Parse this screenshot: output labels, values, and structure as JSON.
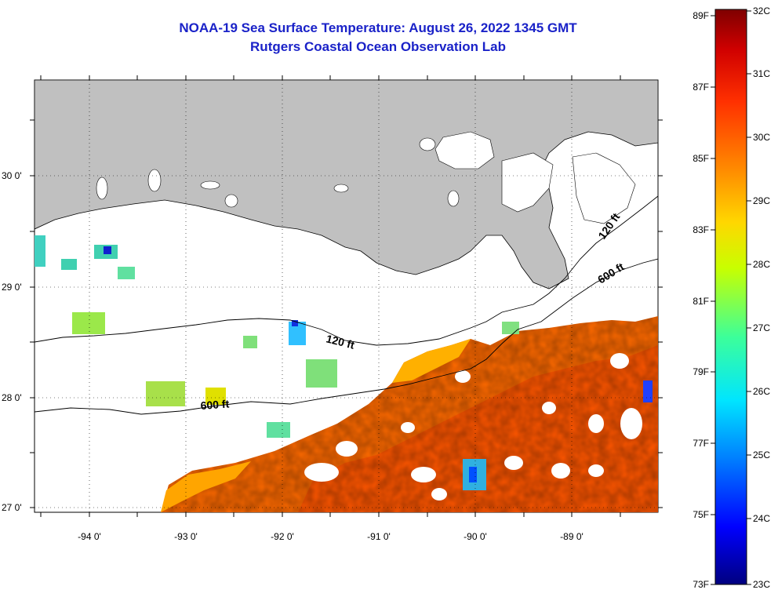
{
  "title": {
    "line1": "NOAA-19 Sea Surface Temperature:  August 26, 2022 1345 GMT",
    "line2": "Rutgers Coastal Ocean Observation Lab"
  },
  "colors": {
    "title": "#1a22c8",
    "land": "#c0c0c0",
    "cloud_mask": "#ffffff"
  },
  "map": {
    "lon_labels": [
      "-94 0'",
      "-93 0'",
      "-92 0'",
      "-91 0'",
      "-90 0'",
      "-89 0'"
    ],
    "lat_labels": [
      "30 0'",
      "29 0'",
      "28 0'",
      "27 0'"
    ],
    "contours": [
      {
        "label": "120 ft"
      },
      {
        "label": "600 ft"
      },
      {
        "label": "120 ft"
      },
      {
        "label": "600 ft"
      }
    ]
  },
  "colorbar": {
    "fahrenheit": [
      "89F",
      "87F",
      "85F",
      "83F",
      "81F",
      "79F",
      "77F",
      "75F",
      "73F"
    ],
    "celsius": [
      "32C",
      "31C",
      "30C",
      "29C",
      "28C",
      "27C",
      "26C",
      "25C",
      "24C",
      "23C"
    ],
    "scale": [
      "#00007f",
      "#0000ff",
      "#0080ff",
      "#00e5ff",
      "#3cff9a",
      "#c8ff00",
      "#ffd700",
      "#ff8c00",
      "#ff3000",
      "#d00000",
      "#7f0000"
    ]
  }
}
